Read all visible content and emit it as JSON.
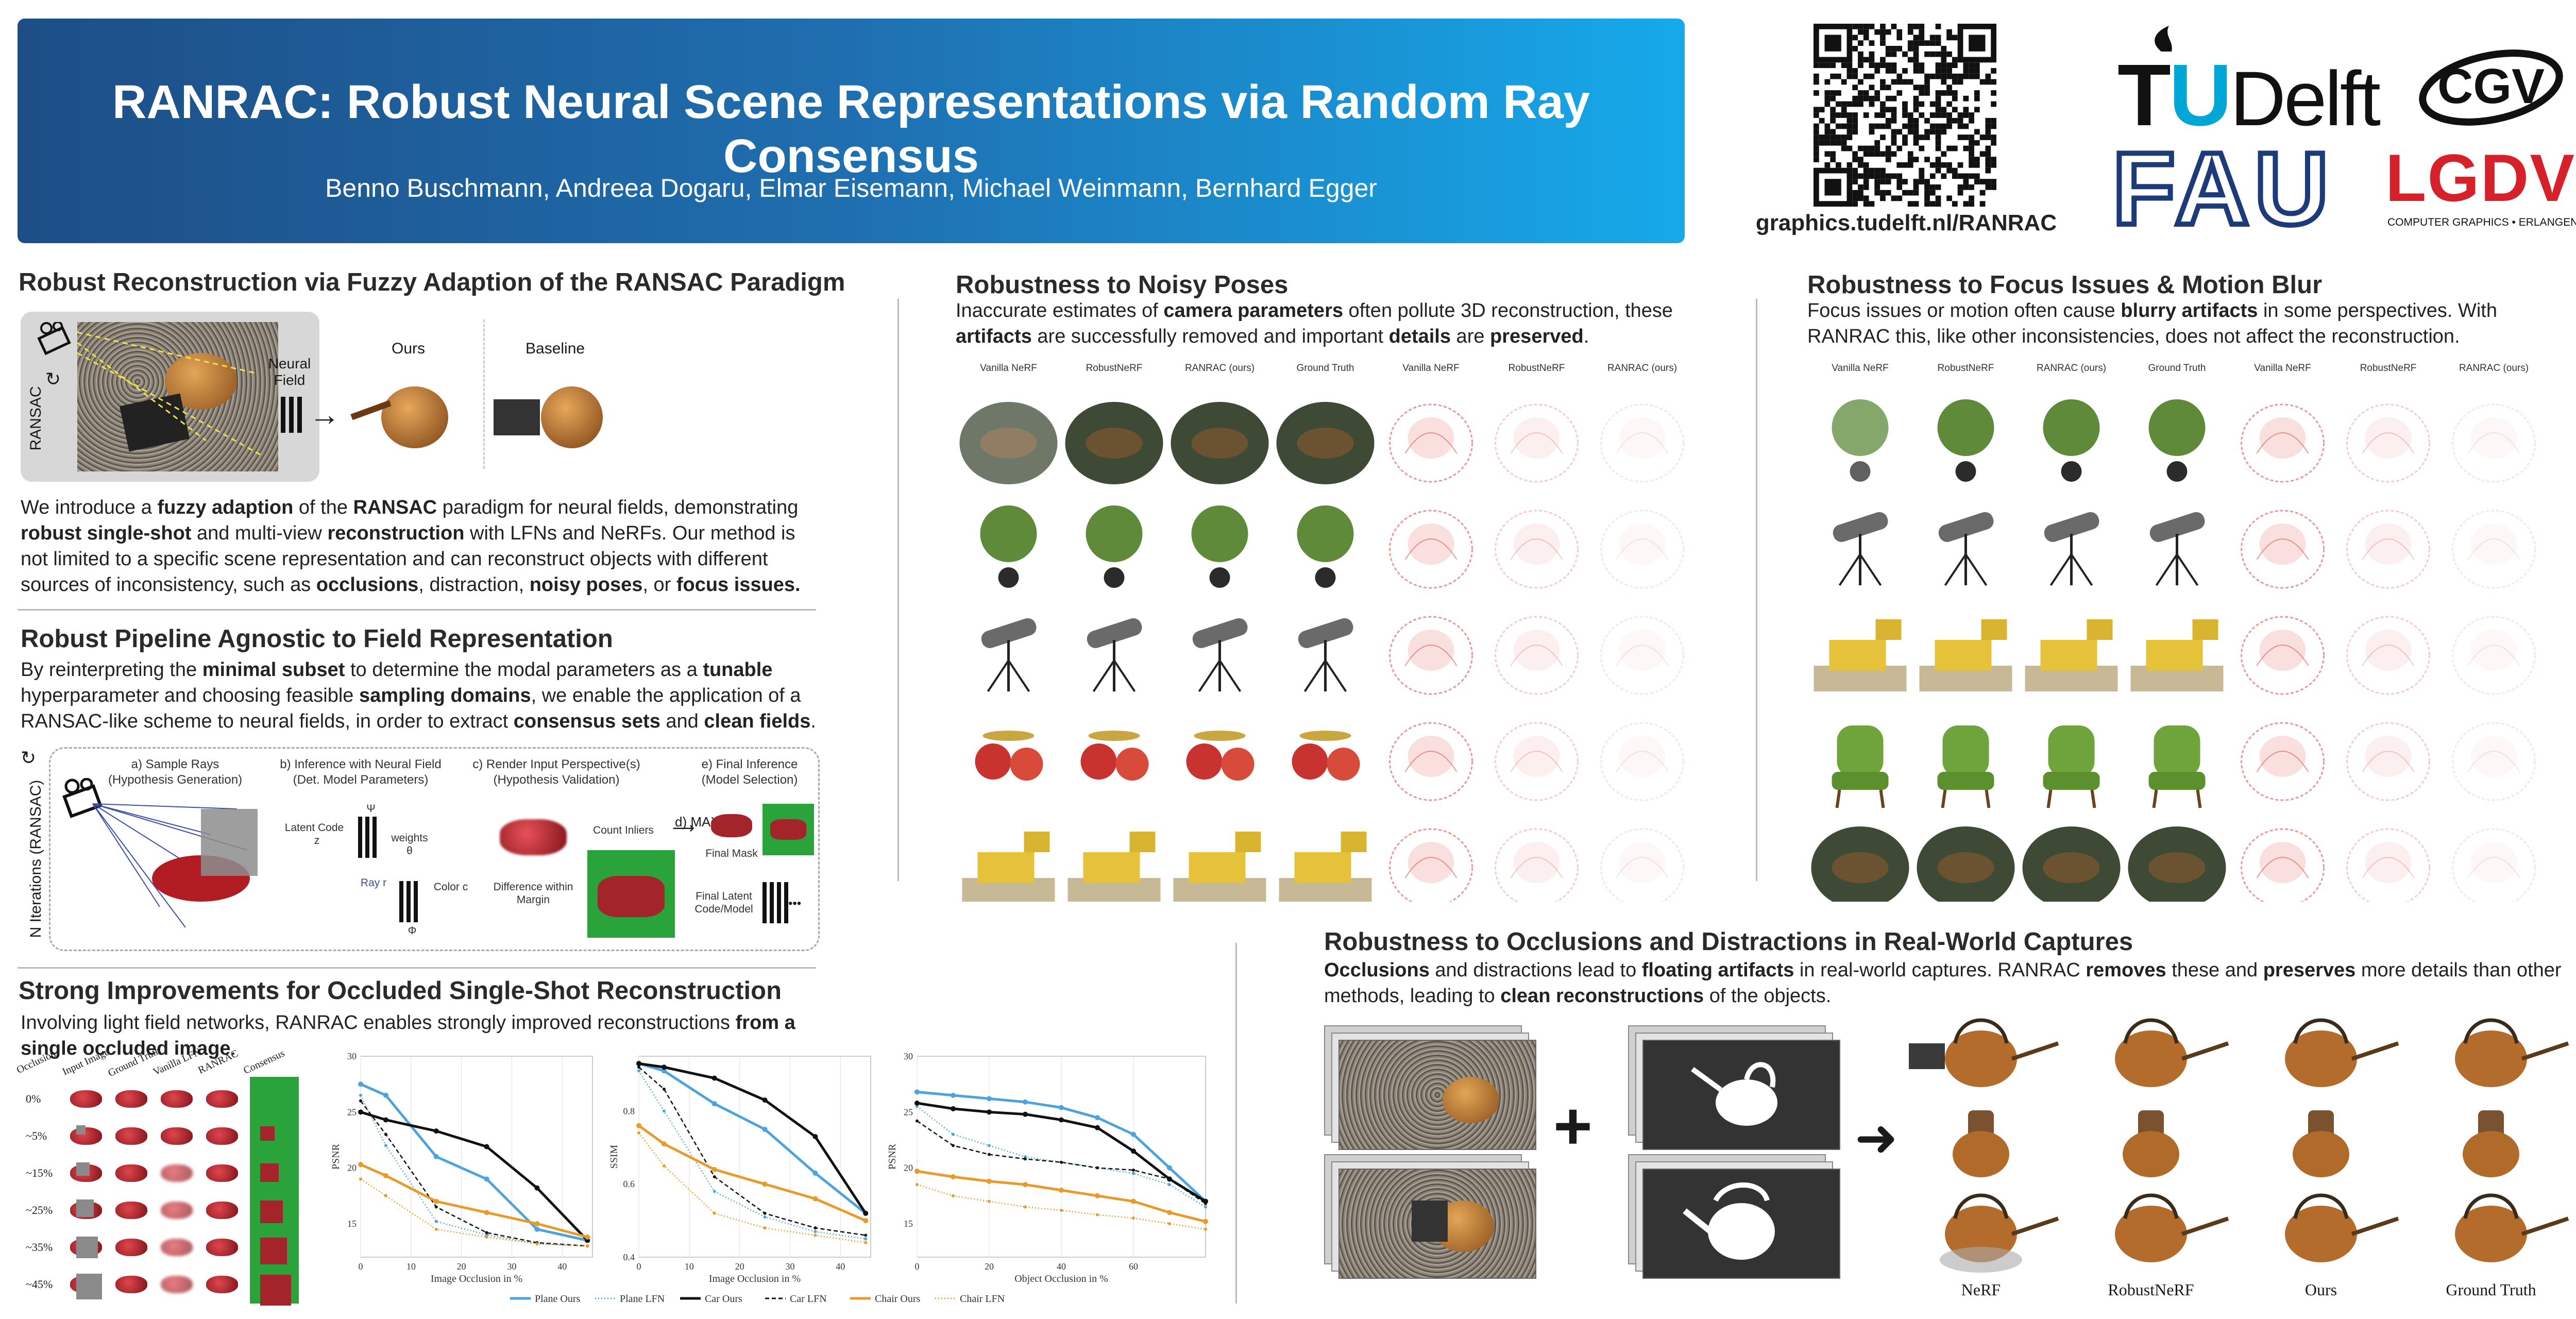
{
  "header": {
    "title": "RANRAC: Robust Neural Scene Representations via Random Ray Consensus",
    "authors": "Benno Buschmann, Andreea Dogaru, Elmar Eisemann, Michael Weinmann, Bernhard Egger",
    "url": "graphics.tudelft.nl/RANRAC",
    "logos": {
      "tud_t": "T",
      "tud_u": "U",
      "tud_delft": "Delft",
      "fau": "FAU",
      "cgv": "CGV",
      "lgdv": "LGDV",
      "lgdv_sub": "COMPUTER GRAPHICS • ERLANGEN"
    }
  },
  "sec1": {
    "title": "Robust Reconstruction via Fuzzy Adaption of the RANSAC Paradigm",
    "ransac_label": "RANSAC",
    "neural_field": "Neural Field",
    "ours": "Ours",
    "baseline": "Baseline",
    "p1": "We introduce a ",
    "b1": "fuzzy adaption",
    "p2": " of the ",
    "b2": "RANSAC",
    "p3": " paradigm for neural fields, demonstrating ",
    "b3": "robust single-shot",
    "p4": " and multi-view ",
    "b4": "reconstruction",
    "p5": " with LFNs and NeRFs. Our method is not limited to a specific scene representation and can reconstruct objects with different sources of inconsistency, such as ",
    "b5": "occlusions",
    "p6": ", distraction, ",
    "b6": "noisy poses",
    "p7": ", or ",
    "b7": "focus issues."
  },
  "sec2": {
    "title": "Robust Pipeline Agnostic to Field Representation",
    "p1": "By reinterpreting the ",
    "b1": "minimal subset",
    "p2": " to determine the modal parameters as a ",
    "b2": "tunable",
    "p3": " hyperparameter and choosing feasible ",
    "b3": "sampling domains",
    "p4": ", we enable the application of a RANSAC-like scheme to neural fields, in order to extract ",
    "b4": "consensus sets",
    "p5": " and ",
    "b5": "clean fields",
    "p6": ".",
    "iter_label": "N Iterations (RANSAC)",
    "step_a": "a) Sample Rays",
    "step_a2": "(Hypothesis Generation)",
    "step_b": "b) Inference with Neural Field",
    "step_b2": "(Det. Model Parameters)",
    "step_c": "c) Render Input Perspective(s)",
    "step_c2": "(Hypothesis Validation)",
    "step_d": "d) MAX",
    "step_e": "e) Final Inference",
    "step_e2": "(Model Selection)",
    "latent_code": "Latent Code",
    "z": "z",
    "psi": "Ψ",
    "weights": "weights",
    "theta": "θ",
    "ray": "Ray r",
    "color": "Color c",
    "phi": "Φ",
    "count_inliers": "Count Inliers",
    "difference": "Difference within",
    "margin": "Margin",
    "final_mask": "Final Mask",
    "final_latent": "Final Latent",
    "code_model": "Code/Model",
    "dots": "•••"
  },
  "sec3": {
    "title": "Strong Improvements for Occluded Single-Shot Reconstruction",
    "p1": "Involving light field networks, RANRAC enables strongly improved reconstructions ",
    "b1": "from a single occluded image",
    "p2": ".",
    "col_headers": [
      "Occlusion",
      "Input Image",
      "Ground Truth",
      "Vanilla LFN",
      "RANRAC",
      "Consensus"
    ],
    "row_labels": [
      "0%",
      "~5%",
      "~15%",
      "~25%",
      "~35%",
      "~45%"
    ]
  },
  "chart_data": [
    {
      "type": "line",
      "ylabel": "PSNR",
      "xlabel": "Image Occlusion in %",
      "xlim": [
        0,
        46
      ],
      "ylim": [
        12,
        30
      ],
      "xticks": [
        0,
        10,
        20,
        30,
        40
      ],
      "yticks": [
        15,
        20,
        25,
        30
      ],
      "series": [
        {
          "name": "Plane Ours",
          "color": "#4da3dd",
          "style": "solid",
          "x": [
            0,
            5,
            15,
            25,
            35,
            45
          ],
          "y": [
            27.5,
            26.5,
            21,
            19,
            14.5,
            13.5
          ]
        },
        {
          "name": "Plane LFN",
          "color": "#4da3dd",
          "style": "dotted",
          "x": [
            0,
            5,
            15,
            25,
            35,
            45
          ],
          "y": [
            26.5,
            22,
            15.2,
            14,
            13.2,
            13
          ]
        },
        {
          "name": "Car Ours",
          "color": "#111111",
          "style": "solid",
          "x": [
            0,
            5,
            15,
            25,
            35,
            45
          ],
          "y": [
            25,
            24.3,
            23.3,
            21.9,
            18.2,
            13.5
          ]
        },
        {
          "name": "Car LFN",
          "color": "#111111",
          "style": "dashed",
          "x": [
            0,
            5,
            15,
            25,
            35,
            45
          ],
          "y": [
            26,
            23,
            16.5,
            14.2,
            13.3,
            13
          ]
        },
        {
          "name": "Chair Ours",
          "color": "#e89a2b",
          "style": "solid",
          "x": [
            0,
            5,
            15,
            25,
            35,
            45
          ],
          "y": [
            20.3,
            19.3,
            17,
            16,
            15,
            13.8
          ]
        },
        {
          "name": "Chair LFN",
          "color": "#e89a2b",
          "style": "dotted",
          "x": [
            0,
            5,
            15,
            25,
            35,
            45
          ],
          "y": [
            19,
            17.5,
            14.5,
            13.8,
            13.2,
            13
          ]
        }
      ]
    },
    {
      "type": "line",
      "ylabel": "SSIM",
      "xlabel": "Image Occlusion in %",
      "xlim": [
        0,
        46
      ],
      "ylim": [
        0.4,
        0.95
      ],
      "xticks": [
        0,
        10,
        20,
        30,
        40
      ],
      "yticks": [
        0.4,
        0.6,
        0.8
      ],
      "series": [
        {
          "name": "Plane Ours",
          "color": "#4da3dd",
          "style": "solid",
          "x": [
            0,
            5,
            15,
            25,
            35,
            45
          ],
          "y": [
            0.93,
            0.91,
            0.82,
            0.75,
            0.63,
            0.52
          ]
        },
        {
          "name": "Plane LFN",
          "color": "#4da3dd",
          "style": "dotted",
          "x": [
            0,
            5,
            15,
            25,
            35,
            45
          ],
          "y": [
            0.91,
            0.8,
            0.58,
            0.51,
            0.47,
            0.45
          ]
        },
        {
          "name": "Car Ours",
          "color": "#111111",
          "style": "solid",
          "x": [
            0,
            5,
            15,
            25,
            35,
            45
          ],
          "y": [
            0.93,
            0.92,
            0.89,
            0.83,
            0.73,
            0.52
          ]
        },
        {
          "name": "Car LFN",
          "color": "#111111",
          "style": "dashed",
          "x": [
            0,
            5,
            15,
            25,
            35,
            45
          ],
          "y": [
            0.92,
            0.86,
            0.62,
            0.52,
            0.48,
            0.46
          ]
        },
        {
          "name": "Chair Ours",
          "color": "#e89a2b",
          "style": "solid",
          "x": [
            0,
            5,
            15,
            25,
            35,
            45
          ],
          "y": [
            0.76,
            0.71,
            0.64,
            0.6,
            0.56,
            0.5
          ]
        },
        {
          "name": "Chair LFN",
          "color": "#e89a2b",
          "style": "dotted",
          "x": [
            0,
            5,
            15,
            25,
            35,
            45
          ],
          "y": [
            0.74,
            0.65,
            0.52,
            0.48,
            0.46,
            0.44
          ]
        }
      ]
    },
    {
      "type": "line",
      "ylabel": "PSNR",
      "xlabel": "Object Occlusion in %",
      "xlim": [
        0,
        80
      ],
      "ylim": [
        12,
        30
      ],
      "xticks": [
        0,
        20,
        40,
        60
      ],
      "yticks": [
        15,
        20,
        25,
        30
      ],
      "series": [
        {
          "name": "Plane Ours",
          "color": "#4da3dd",
          "style": "solid",
          "x": [
            0,
            10,
            20,
            30,
            40,
            50,
            60,
            70,
            80
          ],
          "y": [
            26.8,
            26.5,
            26.2,
            25.9,
            25.4,
            24.5,
            23,
            20,
            17
          ]
        },
        {
          "name": "Plane LFN",
          "color": "#4da3dd",
          "style": "dotted",
          "x": [
            0,
            10,
            20,
            30,
            40,
            50,
            60,
            70,
            80
          ],
          "y": [
            25.5,
            23,
            22,
            21,
            20.5,
            20,
            19.5,
            18.5,
            16.5
          ]
        },
        {
          "name": "Car Ours",
          "color": "#111111",
          "style": "solid",
          "x": [
            0,
            10,
            20,
            30,
            40,
            50,
            60,
            70,
            80
          ],
          "y": [
            25.8,
            25.3,
            25,
            24.8,
            24.3,
            23.6,
            21.5,
            19,
            17
          ]
        },
        {
          "name": "Car LFN",
          "color": "#111111",
          "style": "dashed",
          "x": [
            0,
            10,
            20,
            30,
            40,
            50,
            60,
            70,
            80
          ],
          "y": [
            24.2,
            22,
            21.2,
            20.8,
            20.5,
            20,
            19.8,
            19,
            16.8
          ]
        },
        {
          "name": "Chair Ours",
          "color": "#e89a2b",
          "style": "solid",
          "x": [
            0,
            10,
            20,
            30,
            40,
            50,
            60,
            70,
            80
          ],
          "y": [
            19.7,
            19.2,
            18.8,
            18.5,
            18,
            17.5,
            17,
            16,
            15.2
          ]
        },
        {
          "name": "Chair LFN",
          "color": "#e89a2b",
          "style": "dotted",
          "x": [
            0,
            10,
            20,
            30,
            40,
            50,
            60,
            70,
            80
          ],
          "y": [
            18.5,
            17.5,
            17,
            16.5,
            16.2,
            15.8,
            15.5,
            15,
            14.5
          ]
        }
      ]
    }
  ],
  "sec4": {
    "title": "Robustness to Noisy Poses",
    "p1": "Inaccurate estimates of ",
    "b1": "camera parameters",
    "p2": " often pollute 3D reconstruction, these ",
    "b2": "artifacts",
    "p3": " are successfully removed and important ",
    "b3": "details",
    "p4": " are ",
    "b4": "preserved",
    "p5": ".",
    "cols": [
      "Vanilla NeRF",
      "RobustNeRF",
      "RANRAC (ours)",
      "Ground Truth",
      "Vanilla NeRF",
      "RobustNeRF",
      "RANRAC (ours)"
    ]
  },
  "sec5": {
    "title": "Robustness to Focus Issues & Motion Blur",
    "p1": "Focus issues or motion often cause ",
    "b1": "blurry artifacts",
    "p2": " in some perspectives. With RANRAC this, like other inconsistencies, does not affect the reconstruction.",
    "cols": [
      "Vanilla NeRF",
      "RobustNeRF",
      "RANRAC (ours)",
      "Ground Truth",
      "Vanilla NeRF",
      "RobustNeRF",
      "RANRAC (ours)"
    ]
  },
  "sec6": {
    "title": "Robustness to Occlusions and Distractions in Real-World Captures",
    "b1": "Occlusions",
    "p1": " and distractions lead to ",
    "b2": "floating artifacts",
    "p2": " in real-world captures. RANRAC ",
    "b3": "removes",
    "p3": " these and ",
    "b4": "preserves",
    "p4": " more details than other methods, leading to ",
    "b5": "clean reconstructions",
    "p5": " of the objects.",
    "plus": "+",
    "arrow": "➜",
    "labels": [
      "NeRF",
      "RobustNeRF",
      "Ours",
      "Ground Truth"
    ]
  }
}
